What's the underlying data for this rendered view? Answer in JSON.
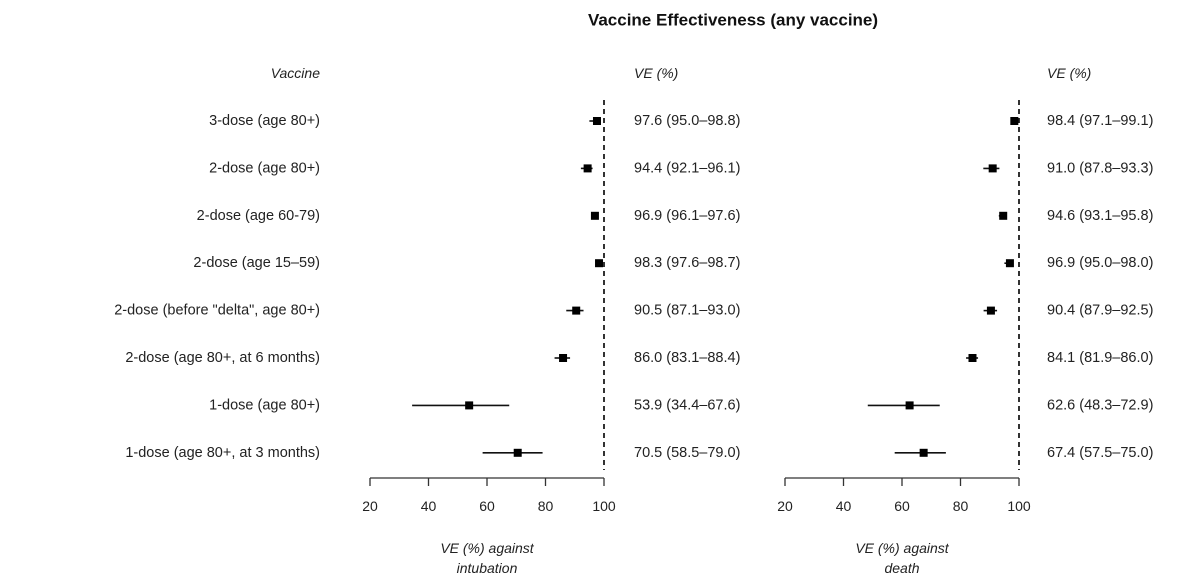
{
  "chart_data": {
    "type": "scatter",
    "marker_shape": "square",
    "title": "Vaccine Effectiveness (any vaccine)",
    "category_header": "Vaccine",
    "categories": [
      "3-dose (age 80+)",
      "2-dose (age 80+)",
      "2-dose (age 60-79)",
      "2-dose (age 15–59)",
      "2-dose (before \"delta\", age 80+)",
      "2-dose (age 80+, at 6 months)",
      "1-dose (age 80+)",
      "1-dose (age 80+, at 3 months)"
    ],
    "x_range": [
      20,
      100
    ],
    "x_ticks": [
      20,
      40,
      60,
      80,
      100
    ],
    "reference_line": {
      "x": 100,
      "dashed": true
    },
    "colors": {
      "marker": "#000000",
      "ci_line": "#111111",
      "axis": "#333333",
      "text": "#222222"
    },
    "panels": [
      {
        "xlabel": [
          "VE (%) against",
          "intubation"
        ],
        "value_header": "VE (%)",
        "estimate": [
          97.6,
          94.4,
          96.9,
          98.3,
          90.5,
          86.0,
          53.9,
          70.5
        ],
        "ci_lower": [
          95.0,
          92.1,
          96.1,
          97.6,
          87.1,
          83.1,
          34.4,
          58.5
        ],
        "ci_upper": [
          98.8,
          96.1,
          97.6,
          98.7,
          93.0,
          88.4,
          67.6,
          79.0
        ],
        "value_labels": [
          "97.6 (95.0–98.8)",
          "94.4 (92.1–96.1)",
          "96.9 (96.1–97.6)",
          "98.3 (97.6–98.7)",
          "90.5 (87.1–93.0)",
          "86.0 (83.1–88.4)",
          "53.9 (34.4–67.6)",
          "70.5 (58.5–79.0)"
        ]
      },
      {
        "xlabel": [
          "VE (%) against",
          "death"
        ],
        "value_header": "VE (%)",
        "estimate": [
          98.4,
          91.0,
          94.6,
          96.9,
          90.4,
          84.1,
          62.6,
          67.4
        ],
        "ci_lower": [
          97.1,
          87.8,
          93.1,
          95.0,
          87.9,
          81.9,
          48.3,
          57.5
        ],
        "ci_upper": [
          99.1,
          93.3,
          95.8,
          98.0,
          92.5,
          86.0,
          72.9,
          75.0
        ],
        "value_labels": [
          "98.4 (97.1–99.1)",
          "91.0 (87.8–93.3)",
          "94.6 (93.1–95.8)",
          "96.9 (95.0–98.0)",
          "90.4 (87.9–92.5)",
          "84.1 (81.9–86.0)",
          "62.6 (48.3–72.9)",
          "67.4 (57.5–75.0)"
        ]
      }
    ]
  }
}
